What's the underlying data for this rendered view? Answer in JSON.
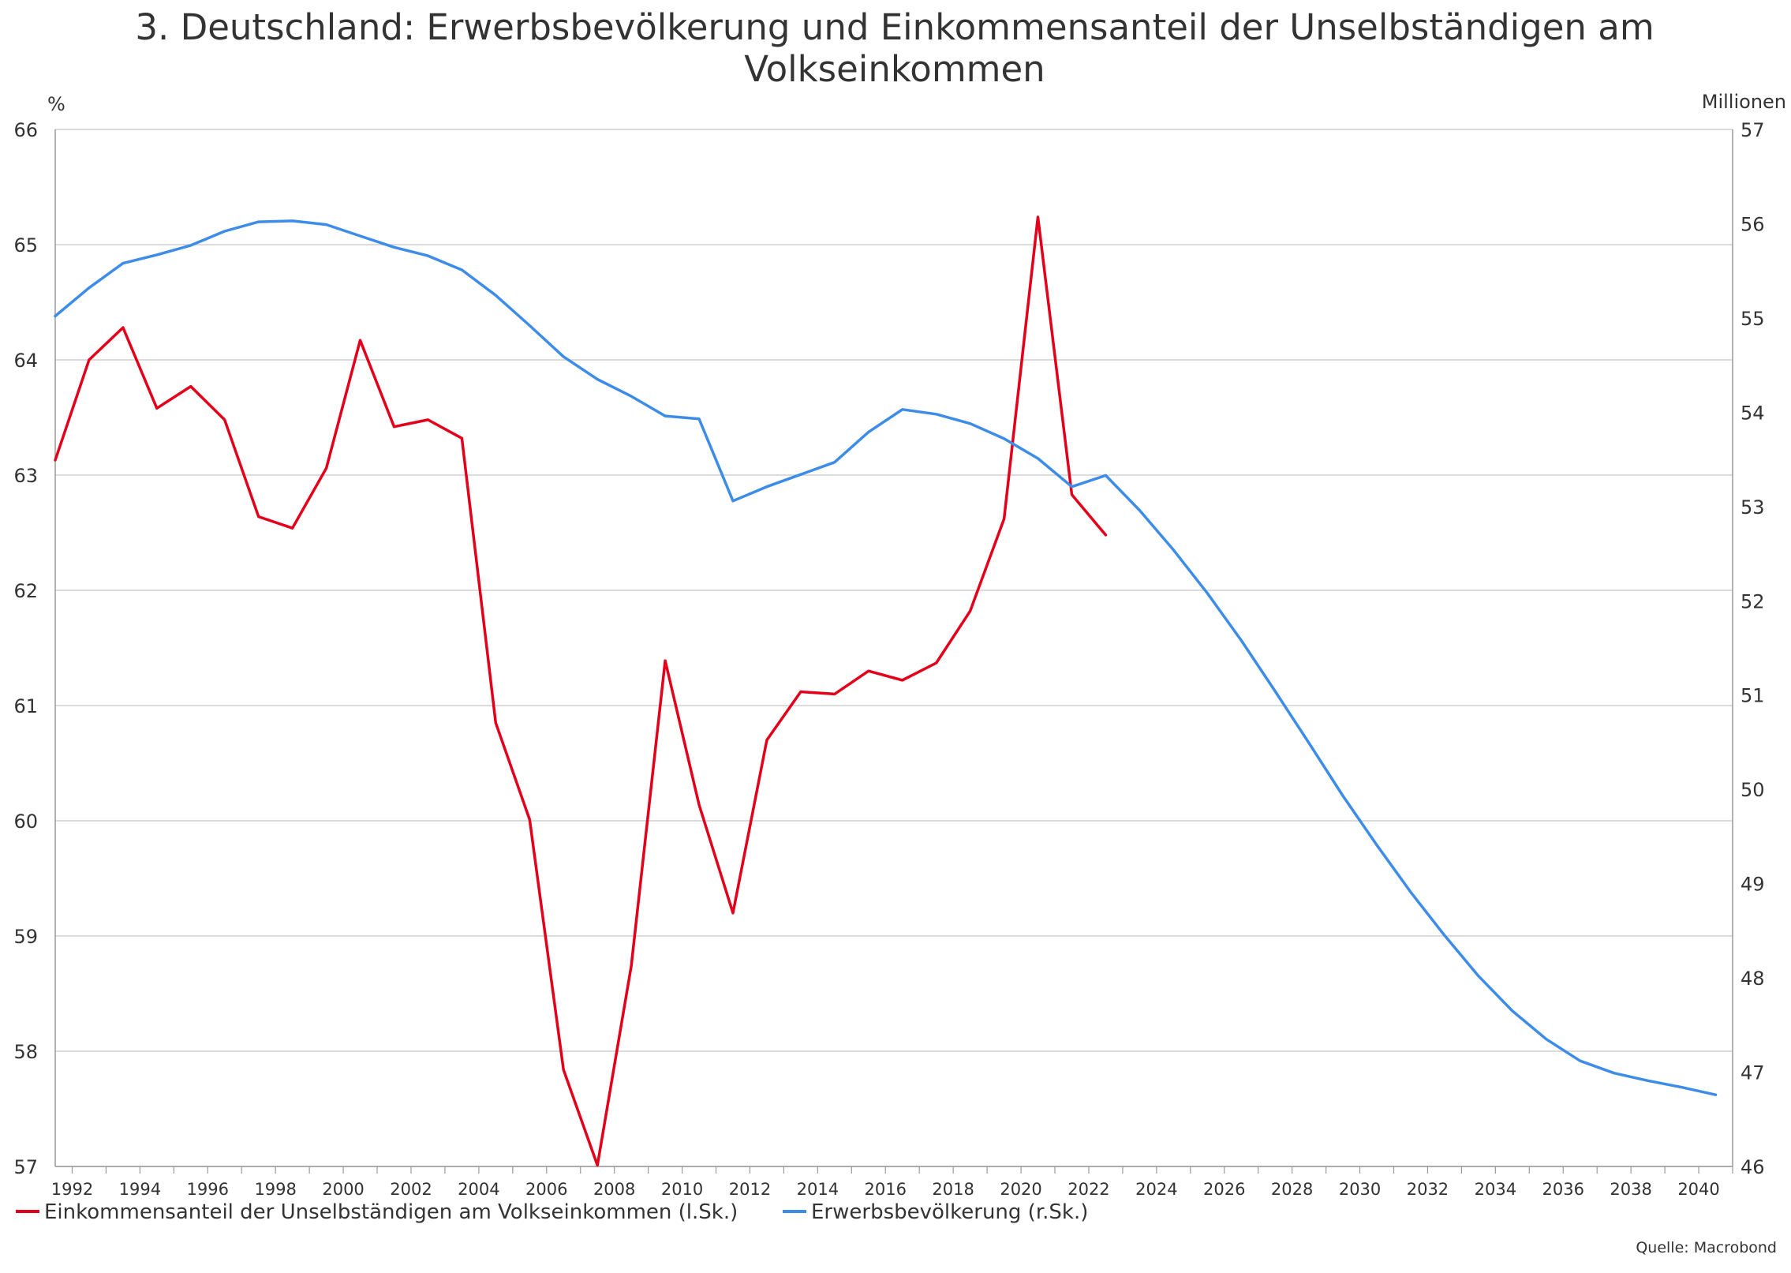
{
  "chart_data": {
    "type": "line",
    "title_line1": "3. Deutschland: Erwerbsbevölkerung und Einkommensanteil der Unselbständigen am",
    "title_line2": "Volkseinkommen",
    "left_unit": "%",
    "right_unit": "Millionen",
    "source": "Quelle: Macrobond",
    "grid": true,
    "legend_position": "bottom-left",
    "x_range": [
      1991.5,
      2041
    ],
    "left_axis": {
      "range": [
        57,
        66
      ],
      "ticks": [
        "57",
        "58",
        "59",
        "60",
        "61",
        "62",
        "63",
        "64",
        "65",
        "66"
      ]
    },
    "right_axis": {
      "range": [
        46,
        57
      ],
      "ticks": [
        "46",
        "47",
        "48",
        "49",
        "50",
        "51",
        "52",
        "53",
        "54",
        "55",
        "56",
        "57"
      ]
    },
    "x_tick_labels": [
      "1992",
      "1994",
      "1996",
      "1998",
      "2000",
      "2002",
      "2004",
      "2006",
      "2008",
      "2010",
      "2012",
      "2014",
      "2016",
      "2018",
      "2020",
      "2022",
      "2024",
      "2026",
      "2028",
      "2030",
      "2032",
      "2034",
      "2036",
      "2038",
      "2040"
    ],
    "series": [
      {
        "name": "Einkommensanteil der Unselbständigen am Volkseinkommen (l.Sk.)",
        "axis": "left",
        "color": "#e2001a",
        "x": [
          1991,
          1992,
          1993,
          1994,
          1995,
          1996,
          1997,
          1998,
          1999,
          2000,
          2001,
          2002,
          2003,
          2004,
          2005,
          2006,
          2007,
          2008,
          2009,
          2010,
          2011,
          2012,
          2013,
          2014,
          2015,
          2016,
          2017,
          2018,
          2019,
          2020,
          2021,
          2022
        ],
        "values": [
          63.13,
          64.0,
          64.28,
          63.58,
          63.77,
          63.48,
          62.64,
          62.54,
          63.06,
          64.17,
          63.42,
          63.48,
          63.32,
          60.85,
          60.01,
          57.84,
          57.01,
          58.74,
          61.39,
          60.14,
          59.2,
          60.7,
          61.12,
          61.1,
          61.3,
          61.22,
          61.37,
          61.82,
          62.62,
          65.24,
          62.83,
          62.48
        ]
      },
      {
        "name": "Erwerbsbevölkerung (r.Sk.)",
        "axis": "right",
        "color": "#3c8ce8",
        "x": [
          1991,
          1992,
          1993,
          1994,
          1995,
          1996,
          1997,
          1998,
          1999,
          2000,
          2001,
          2002,
          2003,
          2004,
          2005,
          2006,
          2007,
          2008,
          2009,
          2010,
          2011,
          2012,
          2013,
          2014,
          2015,
          2016,
          2017,
          2018,
          2019,
          2020,
          2021,
          2022,
          2023,
          2024,
          2025,
          2026,
          2027,
          2028,
          2029,
          2030,
          2031,
          2032,
          2033,
          2034,
          2035,
          2036,
          2037,
          2038,
          2039,
          2040
        ],
        "values": [
          55.02,
          55.32,
          55.58,
          55.67,
          55.77,
          55.92,
          56.02,
          56.03,
          55.99,
          55.87,
          55.75,
          55.66,
          55.51,
          55.24,
          54.92,
          54.59,
          54.35,
          54.17,
          53.96,
          53.93,
          53.06,
          53.21,
          53.34,
          53.47,
          53.79,
          54.03,
          53.98,
          53.88,
          53.72,
          53.51,
          53.21,
          53.33,
          52.96,
          52.54,
          52.08,
          51.58,
          51.04,
          50.49,
          49.93,
          49.41,
          48.91,
          48.45,
          48.02,
          47.65,
          47.35,
          47.12,
          46.99,
          46.91,
          46.84,
          46.76
        ]
      }
    ]
  }
}
